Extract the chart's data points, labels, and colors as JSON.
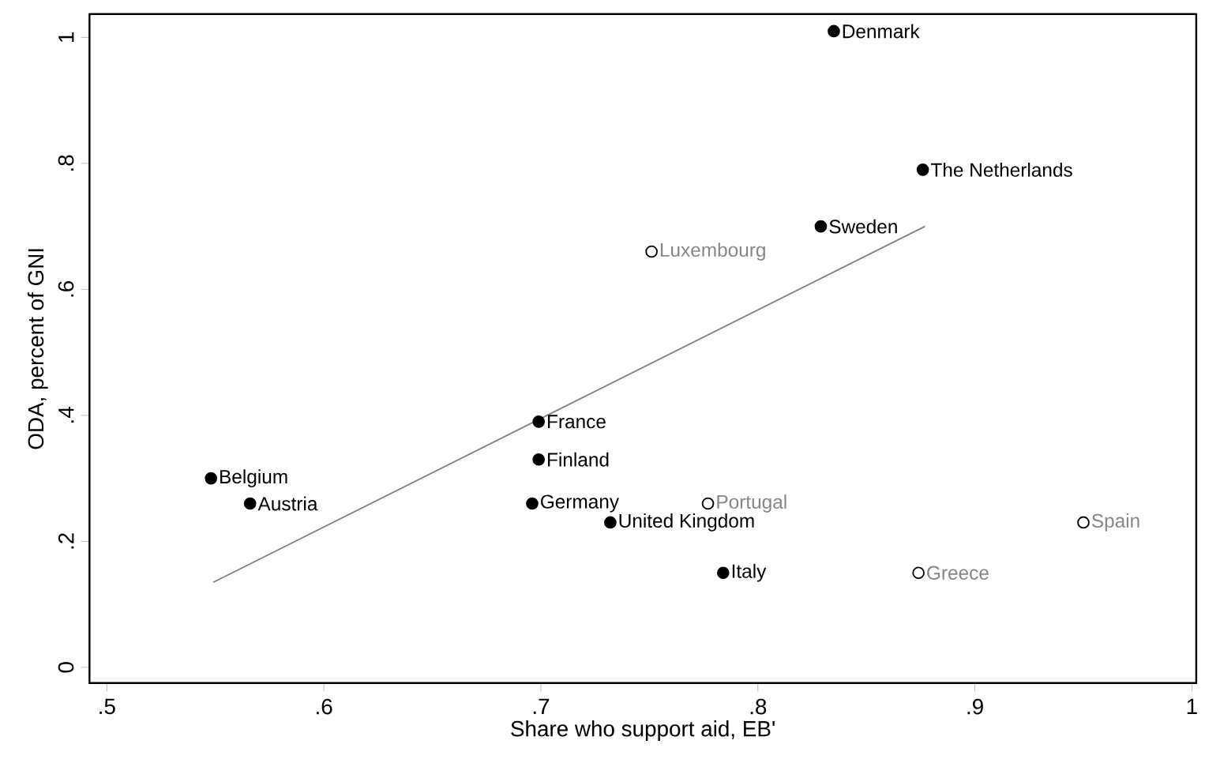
{
  "chart_data": {
    "type": "scatter",
    "xlabel": "Share who support aid, EB'",
    "ylabel": "ODA, percent of GNI",
    "xlim": [
      0.492,
      1.002
    ],
    "ylim": [
      -0.025,
      1.037
    ],
    "xticks": [
      {
        "value": 0.5,
        "label": ".5"
      },
      {
        "value": 0.6,
        "label": ".6"
      },
      {
        "value": 0.7,
        "label": ".7"
      },
      {
        "value": 0.8,
        "label": ".8"
      },
      {
        "value": 0.9,
        "label": ".9"
      },
      1
    ],
    "yticks": [
      0,
      {
        "value": 0.2,
        "label": ".2"
      },
      {
        "value": 0.4,
        "label": ".4"
      },
      {
        "value": 0.6,
        "label": ".6"
      },
      {
        "value": 0.8,
        "label": ".8"
      },
      1
    ],
    "grid": false,
    "series": [
      {
        "color": "#000000",
        "marker": "circle",
        "x": [
          0.835,
          0.876,
          0.829,
          0.699,
          0.699,
          0.548,
          0.566,
          0.696,
          0.732,
          0.784
        ],
        "values": [
          1.01,
          0.79,
          0.7,
          0.39,
          0.33,
          0.3,
          0.26,
          0.26,
          0.23,
          0.15
        ]
      },
      {
        "color": "#ffffff",
        "marker": "circle",
        "x": [
          0.751,
          0.777,
          0.95,
          0.874
        ],
        "values": [
          0.66,
          0.26,
          0.23,
          0.15
        ]
      },
      {
        "type": "line",
        "marker": "none",
        "color": "#808080",
        "x": [
          0.549,
          0.877
        ],
        "values": [
          0.135,
          0.7
        ]
      }
    ],
    "annotations": [
      {
        "text": "Denmark",
        "x": 0.835,
        "y": 1.01
      },
      {
        "text": "The Netherlands",
        "x": 0.876,
        "y": 0.79
      },
      {
        "text": "Sweden",
        "x": 0.829,
        "y": 0.7
      },
      {
        "text": "France",
        "x": 0.699,
        "y": 0.39
      },
      {
        "text": "Finland",
        "x": 0.699,
        "y": 0.33
      },
      {
        "text": "Belgium",
        "x": 0.548,
        "y": 0.3
      },
      {
        "text": "Austria",
        "x": 0.566,
        "y": 0.26
      },
      {
        "text": "Germany",
        "x": 0.696,
        "y": 0.26
      },
      {
        "text": "United Kingdom",
        "x": 0.732,
        "y": 0.23
      },
      {
        "text": "Italy",
        "x": 0.784,
        "y": 0.15
      },
      {
        "text": "Luxembourg",
        "x": 0.751,
        "y": 0.66
      },
      {
        "text": "Portugal",
        "x": 0.777,
        "y": 0.26
      },
      {
        "text": "Spain",
        "x": 0.95,
        "y": 0.23
      },
      {
        "text": "Greece",
        "x": 0.874,
        "y": 0.15
      }
    ]
  }
}
